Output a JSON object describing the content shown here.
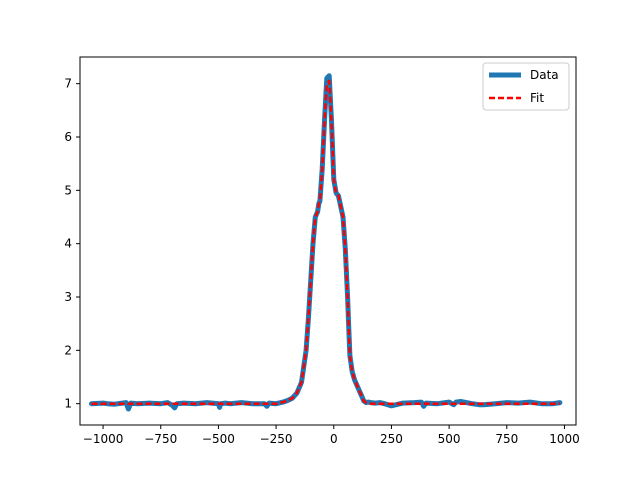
{
  "chart_data": {
    "type": "line",
    "title": "",
    "xlabel": "",
    "ylabel": "",
    "xlim": [
      -1100,
      1050
    ],
    "ylim": [
      0.6,
      7.5
    ],
    "xticks": [
      -1000,
      -750,
      -500,
      -250,
      0,
      250,
      500,
      750,
      1000
    ],
    "xtick_labels": [
      "−1000",
      "−750",
      "−500",
      "−250",
      "0",
      "250",
      "500",
      "750",
      "1000"
    ],
    "yticks": [
      1,
      2,
      3,
      4,
      5,
      6,
      7
    ],
    "ytick_labels": [
      "1",
      "2",
      "3",
      "4",
      "5",
      "6",
      "7"
    ],
    "grid": false,
    "legend": {
      "placement": "top-right",
      "entries": [
        "Data",
        "Fit"
      ]
    },
    "colors": {
      "data": "#1f77b4",
      "fit": "#ff0000"
    },
    "series": [
      {
        "name": "Data",
        "style": "solid-thick",
        "x": [
          -1050,
          -1000,
          -980,
          -950,
          -900,
          -890,
          -880,
          -850,
          -800,
          -750,
          -720,
          -700,
          -690,
          -680,
          -650,
          -600,
          -550,
          -500,
          -495,
          -490,
          -470,
          -450,
          -400,
          -350,
          -300,
          -290,
          -280,
          -250,
          -220,
          -200,
          -180,
          -160,
          -150,
          -140,
          -130,
          -120,
          -110,
          -100,
          -90,
          -80,
          -70,
          -65,
          -60,
          -50,
          -40,
          -30,
          -20,
          -10,
          0,
          10,
          20,
          30,
          40,
          50,
          60,
          65,
          70,
          80,
          90,
          100,
          110,
          120,
          130,
          140,
          150,
          160,
          180,
          200,
          220,
          250,
          300,
          350,
          380,
          390,
          400,
          450,
          500,
          520,
          530,
          550,
          600,
          630,
          650,
          700,
          750,
          800,
          850,
          900,
          950,
          980
        ],
        "y": [
          1.0,
          1.01,
          1.0,
          0.99,
          1.02,
          0.9,
          1.01,
          1.0,
          1.01,
          1.0,
          1.02,
          0.97,
          0.92,
          1.0,
          1.01,
          1.0,
          1.02,
          1.0,
          0.93,
          1.0,
          1.01,
          1.0,
          1.02,
          1.0,
          1.0,
          0.95,
          1.01,
          1.0,
          1.03,
          1.06,
          1.1,
          1.2,
          1.3,
          1.4,
          1.7,
          2.0,
          2.6,
          3.3,
          4.0,
          4.5,
          4.6,
          4.75,
          4.8,
          5.4,
          6.3,
          7.1,
          7.15,
          6.3,
          5.2,
          4.95,
          4.9,
          4.7,
          4.5,
          3.9,
          3.0,
          2.4,
          1.9,
          1.6,
          1.45,
          1.35,
          1.25,
          1.15,
          1.05,
          1.02,
          1.03,
          1.02,
          1.01,
          1.02,
          1.0,
          0.96,
          1.01,
          1.02,
          1.03,
          0.95,
          1.01,
          1.0,
          1.03,
          0.98,
          1.03,
          1.04,
          1.0,
          0.98,
          0.98,
          1.0,
          1.02,
          1.01,
          1.03,
          1.0,
          1.0,
          1.02
        ]
      },
      {
        "name": "Fit",
        "style": "dashed",
        "x": [
          -1050,
          -1000,
          -950,
          -900,
          -850,
          -800,
          -750,
          -700,
          -650,
          -600,
          -550,
          -500,
          -450,
          -400,
          -350,
          -300,
          -250,
          -220,
          -200,
          -180,
          -160,
          -150,
          -140,
          -130,
          -120,
          -110,
          -100,
          -90,
          -80,
          -70,
          -65,
          -60,
          -50,
          -40,
          -30,
          -20,
          -10,
          0,
          10,
          20,
          30,
          40,
          50,
          60,
          65,
          70,
          80,
          90,
          100,
          110,
          120,
          130,
          140,
          150,
          160,
          180,
          200,
          220,
          250,
          300,
          350,
          400,
          450,
          500,
          550,
          600,
          650,
          700,
          750,
          800,
          850,
          900,
          950,
          980
        ],
        "y": [
          1.0,
          1.0,
          1.0,
          1.0,
          1.0,
          1.0,
          1.0,
          1.0,
          1.0,
          1.0,
          1.0,
          1.0,
          1.0,
          1.0,
          1.0,
          1.0,
          1.0,
          1.03,
          1.06,
          1.1,
          1.2,
          1.3,
          1.4,
          1.7,
          2.0,
          2.6,
          3.3,
          4.0,
          4.5,
          4.6,
          4.75,
          4.8,
          5.4,
          6.3,
          7.0,
          7.05,
          6.3,
          5.2,
          4.95,
          4.9,
          4.7,
          4.5,
          3.9,
          3.0,
          2.4,
          1.9,
          1.6,
          1.45,
          1.35,
          1.25,
          1.15,
          1.05,
          1.02,
          1.01,
          1.0,
          1.0,
          1.0,
          1.0,
          1.0,
          1.0,
          1.0,
          1.0,
          1.0,
          1.0,
          1.0,
          1.0,
          1.0,
          1.0,
          1.0,
          1.0,
          1.0,
          1.0,
          1.0,
          1.0
        ]
      }
    ]
  }
}
